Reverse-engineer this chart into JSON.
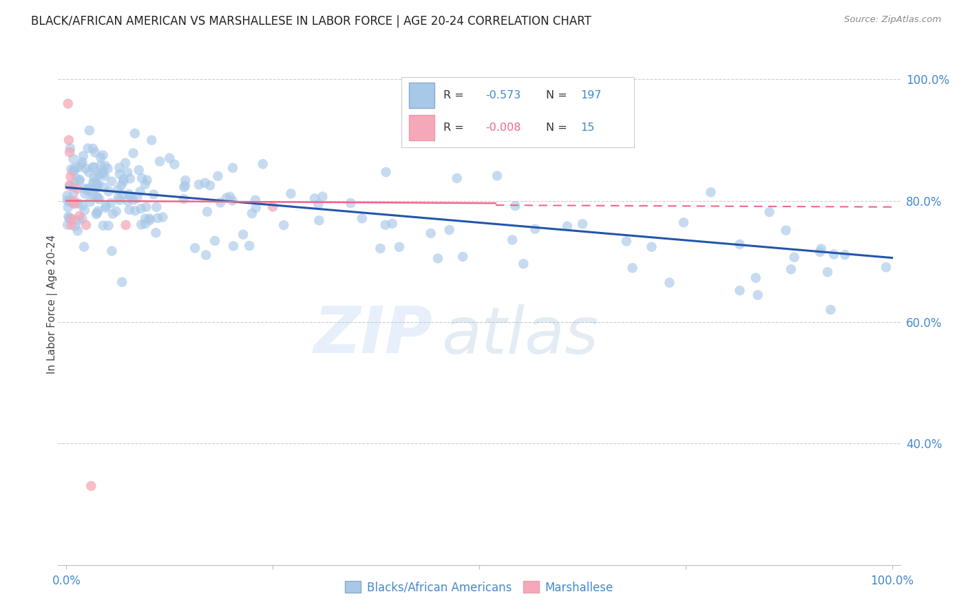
{
  "title": "BLACK/AFRICAN AMERICAN VS MARSHALLESE IN LABOR FORCE | AGE 20-24 CORRELATION CHART",
  "source": "Source: ZipAtlas.com",
  "ylabel": "In Labor Force | Age 20-24",
  "yticks": [
    0.4,
    0.6,
    0.8,
    1.0
  ],
  "ytick_labels": [
    "40.0%",
    "60.0%",
    "80.0%",
    "100.0%"
  ],
  "xtick_labels": [
    "0.0%",
    "100.0%"
  ],
  "legend_labels": [
    "Blacks/African Americans",
    "Marshallese"
  ],
  "blue_R": -0.573,
  "blue_N": 197,
  "pink_R": -0.008,
  "pink_N": 15,
  "blue_color": "#A8C8E8",
  "pink_color": "#F4A8B8",
  "blue_line_color": "#2255AA",
  "pink_line_color": "#EE6688",
  "watermark_zip": "ZIP",
  "watermark_atlas": "atlas",
  "background_color": "#FFFFFF",
  "title_fontsize": 12,
  "axis_color": "#4488CC",
  "ylim_low": 0.2,
  "ylim_high": 1.06,
  "xlim_low": -0.01,
  "xlim_high": 1.01,
  "blue_trend_x0": 0.0,
  "blue_trend_y0": 0.822,
  "blue_trend_x1": 1.0,
  "blue_trend_y1": 0.706,
  "pink_trend_x0": 0.0,
  "pink_trend_y0": 0.8,
  "pink_trend_x1": 0.52,
  "pink_trend_y1": 0.796,
  "pink_trend_dash_x0": 0.52,
  "pink_trend_dash_x1": 1.0,
  "pink_trend_dash_y0": 0.796,
  "pink_trend_dash_y1": 0.793
}
